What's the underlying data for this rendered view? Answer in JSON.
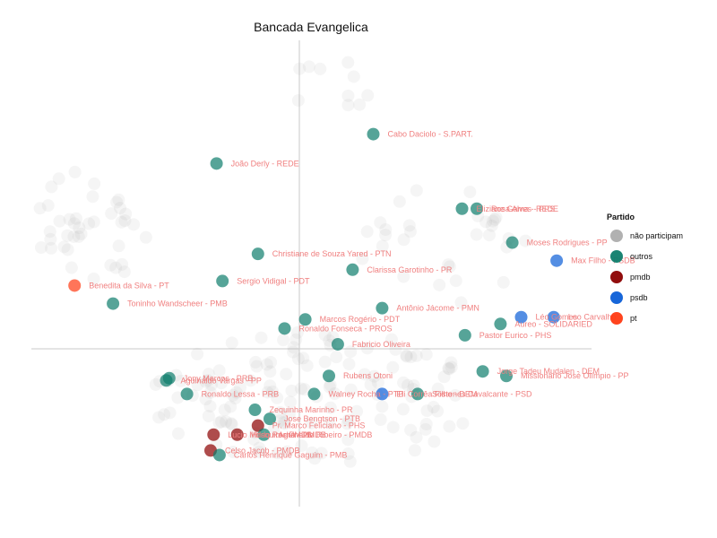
{
  "chart_data": {
    "type": "scatter",
    "title": "Bancada Evangelica",
    "xlabel": "",
    "ylabel": "",
    "grid": false,
    "legend_position": "right",
    "legend": {
      "title": "Partido",
      "entries": [
        {
          "key": "nao_participam",
          "label": "não participam",
          "color": "#a9a9a9"
        },
        {
          "key": "outros",
          "label": "outros",
          "color": "#0e7d6c"
        },
        {
          "key": "pmdb",
          "label": "pmdb",
          "color": "#8b0000"
        },
        {
          "key": "psdb",
          "label": "psdb",
          "color": "#0b5ed7"
        },
        {
          "key": "pt",
          "label": "pt",
          "color": "#ff3a12"
        }
      ]
    },
    "xlim": [
      -1.0,
      1.0
    ],
    "ylim": [
      -1.0,
      1.0
    ],
    "labeled_points": [
      {
        "x": 0.25,
        "y": 0.95,
        "group": "outros",
        "label": "Cabo Daciolo - S.PART."
      },
      {
        "x": -0.28,
        "y": 0.82,
        "group": "outros",
        "label": "João Derly - REDE"
      },
      {
        "x": 0.55,
        "y": 0.62,
        "group": "outros",
        "label": "Eliziane Gama - REDE"
      },
      {
        "x": 0.6,
        "y": 0.62,
        "group": "outros",
        "label": "Rosa Alves - PPS"
      },
      {
        "x": 0.72,
        "y": 0.47,
        "group": "outros",
        "label": "Moses Rodrigues - PP"
      },
      {
        "x": 0.87,
        "y": 0.39,
        "group": "psdb",
        "label": "Max Filho - PSDB"
      },
      {
        "x": -0.14,
        "y": 0.42,
        "group": "outros",
        "label": "Christiane de Souza Yared - PTN"
      },
      {
        "x": 0.18,
        "y": 0.35,
        "group": "outros",
        "label": "Clarissa Garotinho - PR"
      },
      {
        "x": -0.76,
        "y": 0.28,
        "group": "pt",
        "label": "Benedita da Silva - PT"
      },
      {
        "x": -0.26,
        "y": 0.3,
        "group": "outros",
        "label": "Sergio Vidigal - PDT"
      },
      {
        "x": -0.63,
        "y": 0.2,
        "group": "outros",
        "label": "Toninho Wandscheer - PMB"
      },
      {
        "x": 0.28,
        "y": 0.18,
        "group": "outros",
        "label": "Antônio Jácome - PMN"
      },
      {
        "x": 0.02,
        "y": 0.13,
        "group": "outros",
        "label": "Marcos Rogério - PDT"
      },
      {
        "x": -0.05,
        "y": 0.09,
        "group": "outros",
        "label": "Ronaldo Fonseca - PROS"
      },
      {
        "x": 0.13,
        "y": 0.02,
        "group": "outros",
        "label": "Fabricio Oliveira"
      },
      {
        "x": 0.56,
        "y": 0.06,
        "group": "outros",
        "label": "Pastor Eurico - PHS"
      },
      {
        "x": 0.68,
        "y": 0.11,
        "group": "outros",
        "label": "Aureo - SOLIDARIED"
      },
      {
        "x": 0.75,
        "y": 0.14,
        "group": "psdb",
        "label": "Léo Gomes"
      },
      {
        "x": 0.86,
        "y": 0.14,
        "group": "psdb",
        "label": "Leo Carvalho"
      },
      {
        "x": 0.62,
        "y": -0.1,
        "group": "outros",
        "label": "Jorge Tadeu Mudalen - DEM"
      },
      {
        "x": 0.7,
        "y": -0.12,
        "group": "outros",
        "label": "Missionário José Olímpio - PP"
      },
      {
        "x": 0.28,
        "y": -0.2,
        "group": "psdb",
        "label": "Eli Corrêa Filho - DEM"
      },
      {
        "x": 0.4,
        "y": -0.2,
        "group": "outros",
        "label": "Sóstenes Cavalcante - PSD"
      },
      {
        "x": 0.1,
        "y": -0.12,
        "group": "outros",
        "label": "Rubens Otoni"
      },
      {
        "x": 0.05,
        "y": -0.2,
        "group": "outros",
        "label": "Walney Rocha - PTB"
      },
      {
        "x": -0.15,
        "y": -0.27,
        "group": "outros",
        "label": "Zequinha Marinho - PR"
      },
      {
        "x": -0.1,
        "y": -0.31,
        "group": "outros",
        "label": "Jose Bengtson - PTB"
      },
      {
        "x": -0.14,
        "y": -0.34,
        "group": "pmdb",
        "label": "Pr. Marco Feliciano - PHS"
      },
      {
        "x": -0.29,
        "y": -0.38,
        "group": "pmdb",
        "label": "Lucio Mosquini - PMDB"
      },
      {
        "x": -0.21,
        "y": -0.38,
        "group": "pmdb",
        "label": "Hildo Rocha - PMDB"
      },
      {
        "x": -0.12,
        "y": -0.38,
        "group": "outros",
        "label": "Aguinaldo Ribeiro - PMDB"
      },
      {
        "x": -0.3,
        "y": -0.45,
        "group": "pmdb",
        "label": "Celso Jacob - PMDB"
      },
      {
        "x": -0.27,
        "y": -0.47,
        "group": "outros",
        "label": "Carlos Henrique Gaguim - PMB"
      },
      {
        "x": -0.44,
        "y": -0.13,
        "group": "outros",
        "label": "Jony Marcos - PRB"
      },
      {
        "x": -0.45,
        "y": -0.14,
        "group": "outros",
        "label": "Aguinaldo Vargas - PP"
      },
      {
        "x": -0.38,
        "y": -0.2,
        "group": "outros",
        "label": "Ronaldo Lessa - PRB"
      }
    ]
  }
}
